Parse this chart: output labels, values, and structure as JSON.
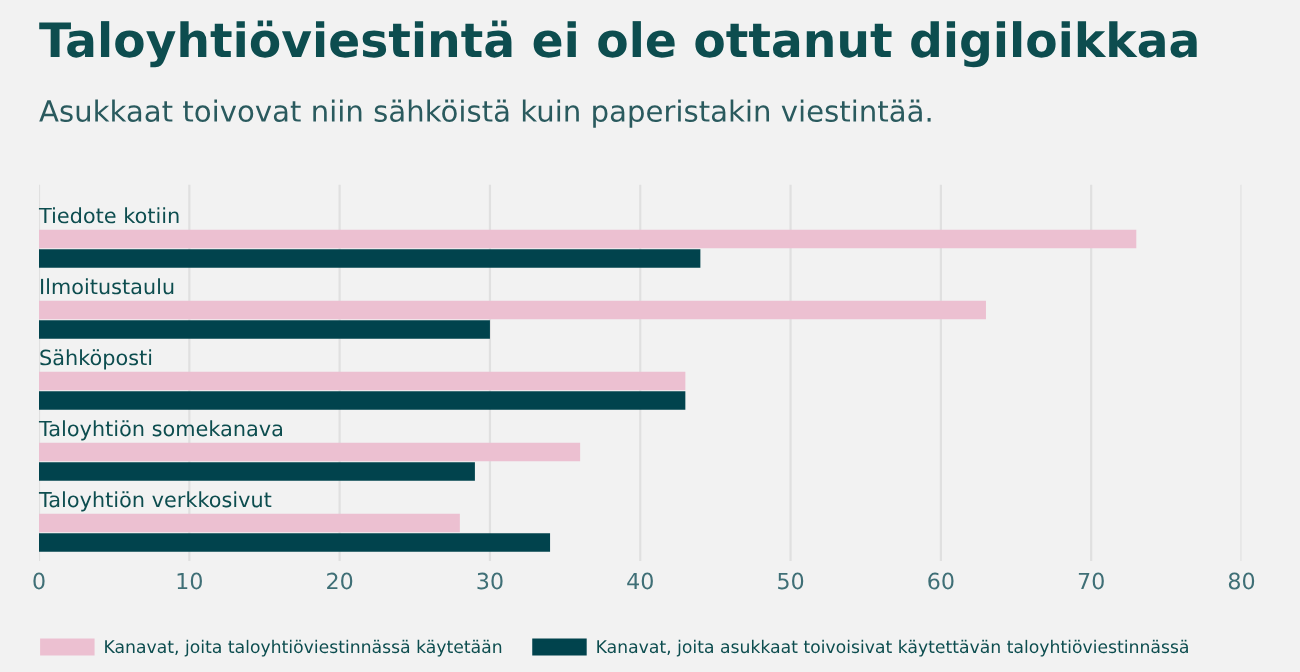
{
  "chart_data": {
    "type": "bar",
    "orientation": "horizontal",
    "title": "Taloyhtiöviestintä ei ole ottanut digiloikkaa",
    "subtitle": "Asukkaat toivovat niin sähköistä kuin paperistakin viestintää.",
    "categories": [
      "Tiedote kotiin",
      "Ilmoitustaulu",
      "Sähköposti",
      "Taloyhtiön somekanava",
      "Taloyhtiön verkkosivut"
    ],
    "series": [
      {
        "name": "Kanavat, joita taloyhtiöviestinnässä käytetään",
        "color": "#ecc0d1",
        "values": [
          73,
          63,
          43,
          36,
          28
        ]
      },
      {
        "name": "Kanavat, joita asukkaat toivoisivat käytettävän taloyhtiöviestinnässä",
        "color": "#01434d",
        "values": [
          44,
          30,
          43,
          29,
          34
        ]
      }
    ],
    "xlim": [
      0,
      80
    ],
    "xticks": [
      0,
      10,
      20,
      30,
      40,
      50,
      60,
      70,
      80
    ],
    "grid": "x",
    "legend": "bottom"
  }
}
